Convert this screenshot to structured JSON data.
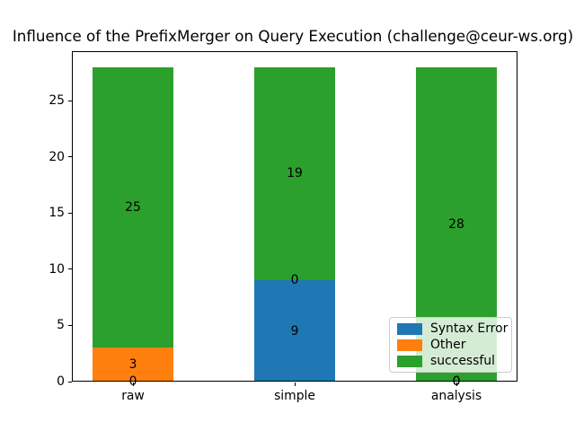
{
  "chart_data": {
    "type": "bar",
    "stacked": true,
    "title": "Influence of the PrefixMerger on Query Execution (challenge@ceur-ws.org)",
    "xlabel": "",
    "ylabel": "",
    "categories": [
      "raw",
      "simple",
      "analysis"
    ],
    "series": [
      {
        "name": "Syntax Error",
        "color": "#1f77b4",
        "values": [
          0,
          9,
          0
        ]
      },
      {
        "name": "Other",
        "color": "#ff7f0e",
        "values": [
          3,
          0,
          0
        ]
      },
      {
        "name": "successful",
        "color": "#2ca02c",
        "values": [
          25,
          19,
          28
        ]
      }
    ],
    "bar_value_labels": true,
    "yticks": [
      0,
      5,
      10,
      15,
      20,
      25
    ],
    "ylim": [
      0,
      29.4
    ],
    "grid": false,
    "legend": {
      "position": "lower right",
      "entries": [
        "Syntax Error",
        "Other",
        "successful"
      ]
    },
    "colors": {
      "background": "#ffffff",
      "axis": "#000000",
      "legend_border": "#cccccc"
    }
  }
}
